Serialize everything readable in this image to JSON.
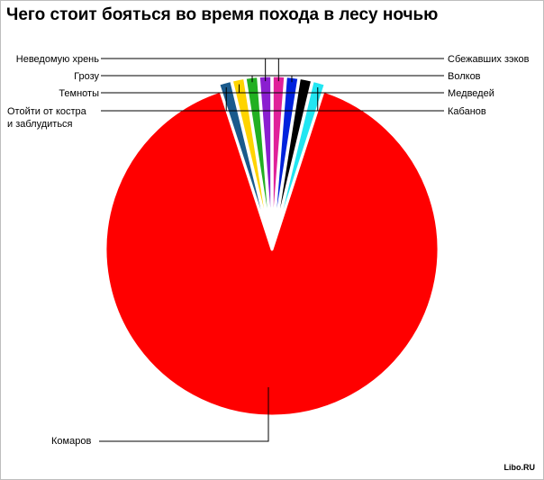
{
  "page": {
    "title": "Чего стоит бояться во время похода в лесу ночью",
    "credit": "Libo.RU"
  },
  "chart_data": {
    "type": "pie",
    "title": "Чего стоит бояться во время похода в лесу ночью",
    "slices": [
      {
        "label": "Комаров",
        "value": 90.0,
        "color": "#ff0000",
        "exploded": false
      },
      {
        "label": "Кабанов",
        "value": 1.25,
        "color": "#1a5a8c",
        "exploded": true
      },
      {
        "label": "Медведей",
        "value": 1.25,
        "color": "#ffd400",
        "exploded": true
      },
      {
        "label": "Волков",
        "value": 1.25,
        "color": "#22b022",
        "exploded": true
      },
      {
        "label": "Сбежавших зэков",
        "value": 1.25,
        "color": "#8a1fd0",
        "exploded": true
      },
      {
        "label": "Неведомую хрень",
        "value": 1.25,
        "color": "#e0209a",
        "exploded": true
      },
      {
        "label": "Грозу",
        "value": 1.25,
        "color": "#0022dd",
        "exploded": true
      },
      {
        "label": "Темноты",
        "value": 1.25,
        "color": "#000000",
        "exploded": true
      },
      {
        "label": "Отойти от костра и заблудиться",
        "value": 1.25,
        "color": "#22e6f2",
        "exploded": true
      }
    ]
  }
}
